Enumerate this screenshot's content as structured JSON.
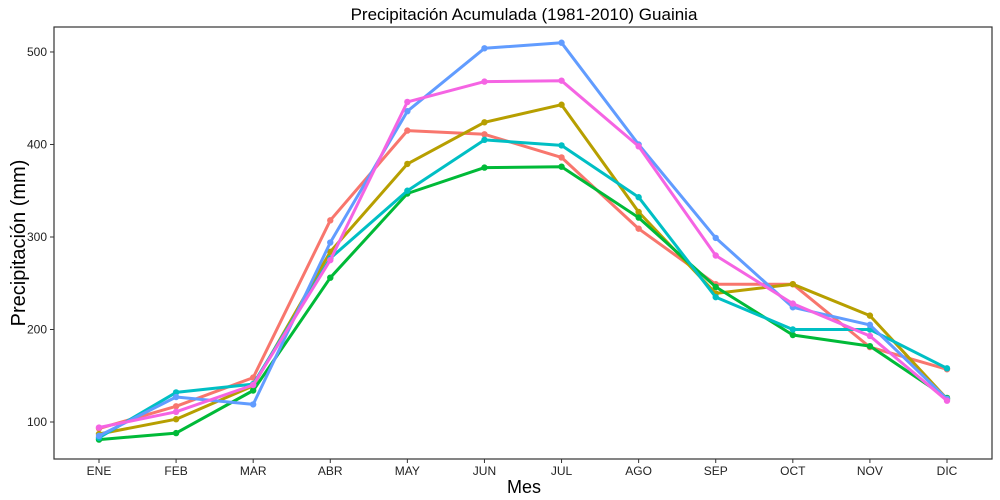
{
  "chart_data": {
    "type": "line",
    "title": "Precipitación Acumulada (1981-2010)  Guainia",
    "xlabel": "Mes",
    "ylabel": "Precipitación  (mm)",
    "categories": [
      "ENE",
      "FEB",
      "MAR",
      "ABR",
      "MAY",
      "JUN",
      "JUL",
      "AGO",
      "SEP",
      "OCT",
      "NOV",
      "DIC"
    ],
    "yticks": [
      100,
      200,
      300,
      400,
      500
    ],
    "ylim": [
      60,
      527
    ],
    "grid": false,
    "legend": "none",
    "series": [
      {
        "color": "#F8766D",
        "values": [
          93,
          117,
          148,
          318,
          415,
          411,
          386,
          309,
          249,
          249,
          181,
          157
        ]
      },
      {
        "color": "#B79F00",
        "values": [
          87,
          103,
          139,
          284,
          379,
          424,
          443,
          327,
          239,
          249,
          215,
          125
        ]
      },
      {
        "color": "#00BA38",
        "values": [
          81,
          88,
          134,
          256,
          347,
          375,
          376,
          321,
          246,
          194,
          182,
          126
        ]
      },
      {
        "color": "#00BFC4",
        "values": [
          83,
          132,
          141,
          277,
          350,
          405,
          399,
          343,
          235,
          200,
          200,
          158
        ]
      },
      {
        "color": "#619CFF",
        "values": [
          85,
          127,
          119,
          294,
          436,
          504,
          510,
          400,
          299,
          224,
          205,
          125
        ]
      },
      {
        "color": "#F564E3",
        "values": [
          94,
          111,
          140,
          275,
          446,
          468,
          469,
          398,
          280,
          228,
          193,
          123
        ]
      }
    ]
  }
}
